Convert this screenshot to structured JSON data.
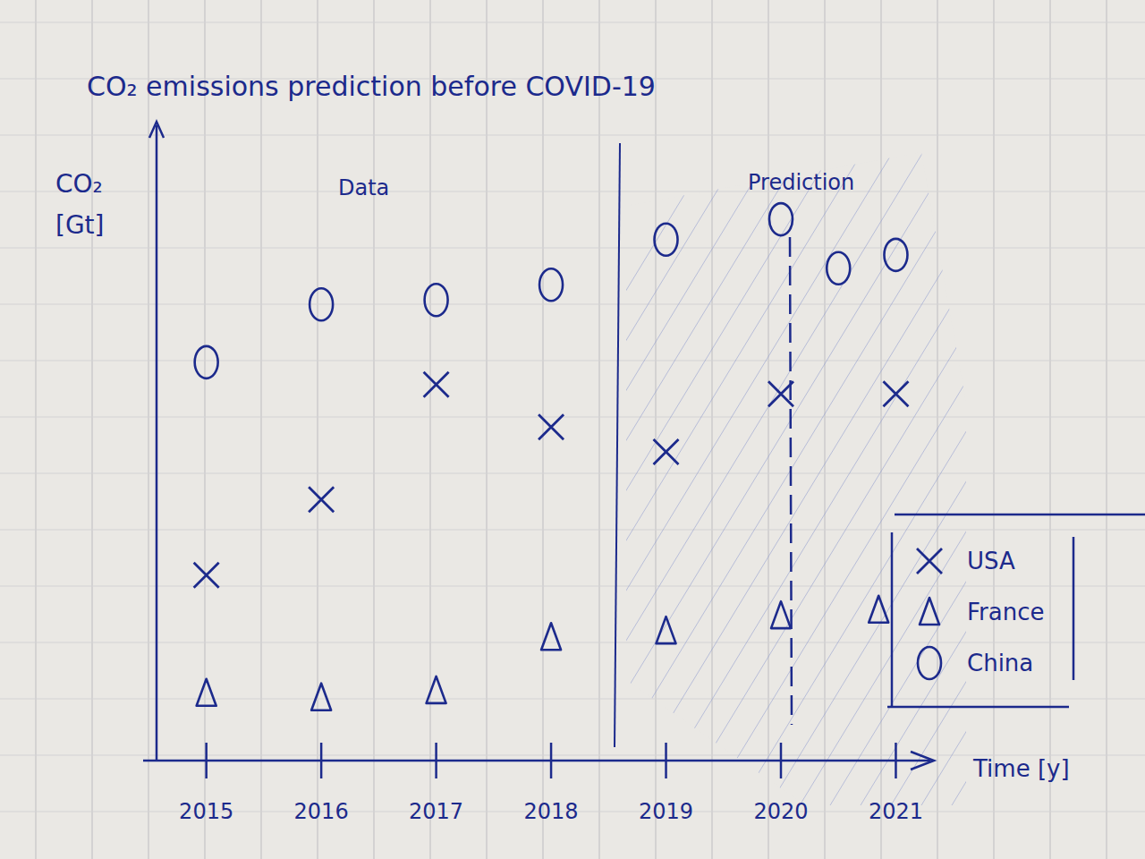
{
  "chart_data": {
    "type": "scatter",
    "title": "CO₂ emissions prediction before COVID-19",
    "y_label": "CO₂ [Gt]",
    "x_label": "Time [y]",
    "annotations": [
      "Data",
      "Prediction"
    ],
    "series": [
      {
        "name": "USA",
        "color": "#1c2a8c",
        "marker": "x",
        "x": [
          2015,
          2016,
          2017,
          2018,
          2019,
          2020,
          2021
        ],
        "values": [
          2.92,
          4.11,
          5.92,
          5.25,
          4.86,
          5.77,
          5.77
        ]
      },
      {
        "name": "France",
        "color": "#1c2a8c",
        "marker": "triangle",
        "x": [
          2015,
          2016,
          2017,
          2018,
          2019,
          2020,
          2020.85
        ],
        "values": [
          1.06,
          0.99,
          1.1,
          1.94,
          2.04,
          2.28,
          2.37
        ]
      },
      {
        "name": "China",
        "color": "#1c2a8c",
        "marker": "circle",
        "x": [
          2015,
          2016,
          2017,
          2018,
          2019,
          2020,
          2020.5,
          2021
        ],
        "values": [
          6.27,
          7.18,
          7.25,
          7.49,
          8.2,
          8.52,
          7.75,
          7.96
        ]
      }
    ],
    "xlim": [
      2014.45,
      2021.3
    ],
    "xticks": [
      2015,
      2016,
      2017,
      2018,
      2019,
      2020,
      2021
    ],
    "ylim": [
      0,
      10
    ],
    "yticks": [],
    "tick_labels": "x",
    "grid": false,
    "legend": "lower right"
  }
}
